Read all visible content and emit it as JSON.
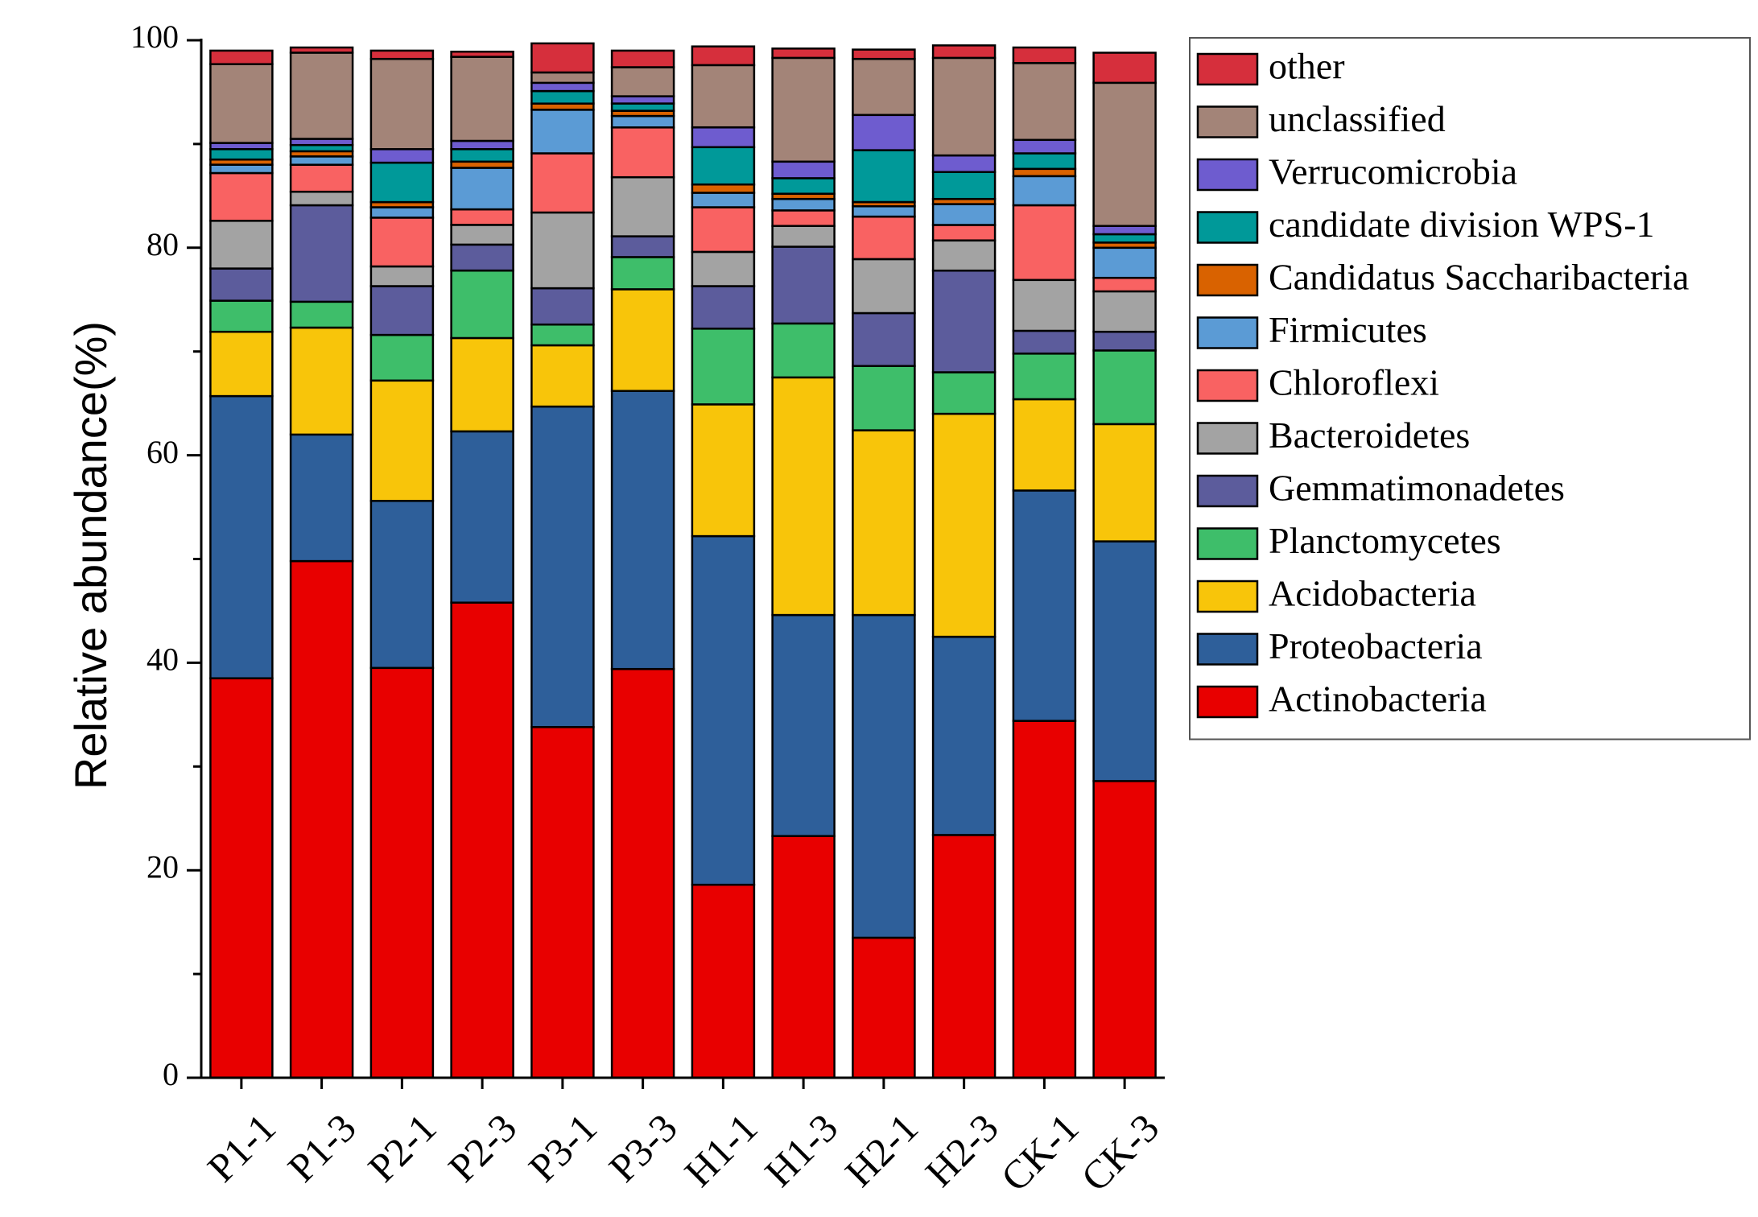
{
  "chart_data": {
    "type": "bar",
    "stacked": true,
    "xlabel": "",
    "ylabel": "Relative abundance(%)",
    "ylim": [
      0,
      100
    ],
    "yticks": [
      0,
      20,
      40,
      60,
      80,
      100
    ],
    "grid": false,
    "legend_position": "right",
    "categories": [
      "P1-1",
      "P1-3",
      "P2-1",
      "P2-3",
      "P3-1",
      "P3-3",
      "H1-1",
      "H1-3",
      "H2-1",
      "H2-3",
      "CK-1",
      "CK-3"
    ],
    "series": [
      {
        "name": "Actinobacteria",
        "color": "#E80000",
        "values": [
          38.5,
          49.8,
          39.5,
          45.8,
          33.8,
          39.4,
          18.6,
          23.3,
          13.5,
          23.4,
          34.4,
          28.6
        ]
      },
      {
        "name": "Proteobacteria",
        "color": "#2E5F9A",
        "values": [
          27.2,
          12.2,
          16.1,
          16.5,
          30.9,
          26.8,
          33.6,
          21.3,
          31.1,
          19.1,
          22.2,
          23.1
        ]
      },
      {
        "name": "Acidobacteria",
        "color": "#F8C50A",
        "values": [
          6.2,
          10.3,
          11.6,
          9.0,
          5.9,
          9.8,
          12.7,
          22.9,
          17.8,
          21.5,
          8.8,
          11.3
        ]
      },
      {
        "name": "Planctomycetes",
        "color": "#3EBE6A",
        "values": [
          3.0,
          2.5,
          4.4,
          6.5,
          2.0,
          3.1,
          7.3,
          5.2,
          6.2,
          4.0,
          4.4,
          7.1
        ]
      },
      {
        "name": "Gemmatimonadetes",
        "color": "#5C5C9C",
        "values": [
          3.1,
          9.3,
          4.7,
          2.5,
          3.5,
          2.0,
          4.1,
          7.4,
          5.1,
          9.8,
          2.2,
          1.8
        ]
      },
      {
        "name": "Bacteroidetes",
        "color": "#A3A3A3",
        "values": [
          4.6,
          1.3,
          1.9,
          1.9,
          7.3,
          5.7,
          3.3,
          2.0,
          5.2,
          2.9,
          4.9,
          3.9
        ]
      },
      {
        "name": "Chloroflexi",
        "color": "#F96262",
        "values": [
          4.6,
          2.6,
          4.7,
          1.5,
          5.7,
          4.8,
          4.3,
          1.5,
          4.1,
          1.5,
          7.2,
          1.3
        ]
      },
      {
        "name": "Firmicutes",
        "color": "#5B9BD5",
        "values": [
          0.8,
          0.8,
          1.0,
          4.0,
          4.2,
          1.1,
          1.4,
          1.1,
          1.0,
          2.0,
          2.8,
          2.9
        ]
      },
      {
        "name": "Candidatus Saccharibacteria",
        "color": "#D96200",
        "values": [
          0.5,
          0.5,
          0.5,
          0.6,
          0.6,
          0.5,
          0.8,
          0.5,
          0.4,
          0.5,
          0.7,
          0.5
        ]
      },
      {
        "name": "candidate division WPS-1",
        "color": "#009999",
        "values": [
          1.0,
          0.6,
          3.8,
          1.2,
          1.2,
          0.7,
          3.6,
          1.5,
          5.0,
          2.6,
          1.5,
          0.8
        ]
      },
      {
        "name": "Verrucomicrobia",
        "color": "#6E5CCF",
        "values": [
          0.6,
          0.6,
          1.3,
          0.8,
          0.8,
          0.7,
          1.9,
          1.6,
          3.4,
          1.6,
          1.3,
          0.8
        ]
      },
      {
        "name": "unclassified",
        "color": "#A38478",
        "values": [
          7.6,
          8.3,
          8.7,
          8.1,
          1.0,
          2.8,
          6.0,
          10.0,
          5.4,
          9.4,
          7.4,
          13.8
        ]
      },
      {
        "name": "other",
        "color": "#D62F3C",
        "values": [
          1.3,
          0.5,
          0.8,
          0.5,
          2.8,
          1.6,
          1.8,
          0.9,
          0.9,
          1.2,
          1.5,
          2.9
        ]
      }
    ]
  }
}
